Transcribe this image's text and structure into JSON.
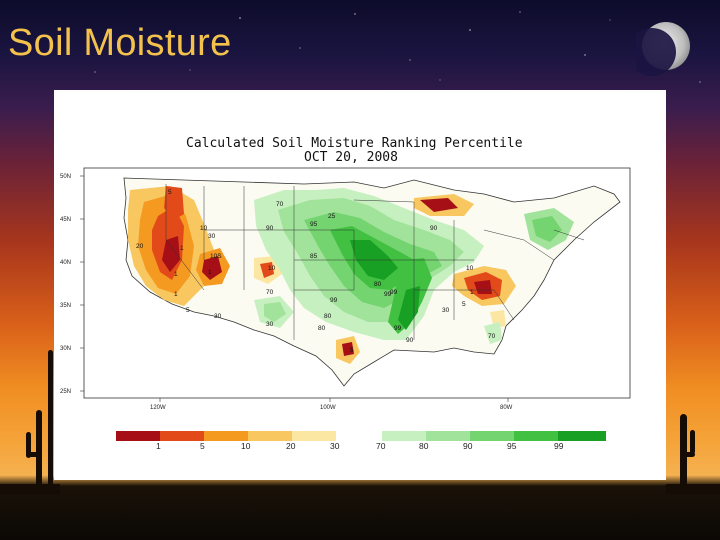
{
  "slide": {
    "title": "Soil Moisture"
  },
  "map": {
    "title_line1": "Calculated Soil Moisture Ranking Percentile",
    "title_line2": "OCT 20, 2008",
    "lat_labels": [
      "50N",
      "45N",
      "40N",
      "35N",
      "30N",
      "25N"
    ],
    "lon_labels": [
      "120W",
      "100W",
      "80W"
    ],
    "contour_labels": [
      "5",
      "1",
      "1",
      "1",
      "1",
      "5",
      "10",
      "20",
      "30",
      "10S",
      "70",
      "25",
      "90",
      "95",
      "85",
      "80",
      "99",
      "99",
      "80",
      "90",
      "80",
      "10",
      "1",
      "5",
      "30",
      "70",
      "30",
      "90",
      "99",
      "99",
      "5",
      "70",
      "10",
      "30"
    ]
  },
  "legend": {
    "labels": [
      "1",
      "5",
      "10",
      "20",
      "30",
      "70",
      "80",
      "90",
      "95",
      "99"
    ],
    "colors": [
      "#a50f15",
      "#e34a1a",
      "#f59a21",
      "#f8c760",
      "#fbe6a2",
      "#c7f0c0",
      "#a1e39a",
      "#74d46f",
      "#41c041",
      "#17a023"
    ]
  }
}
